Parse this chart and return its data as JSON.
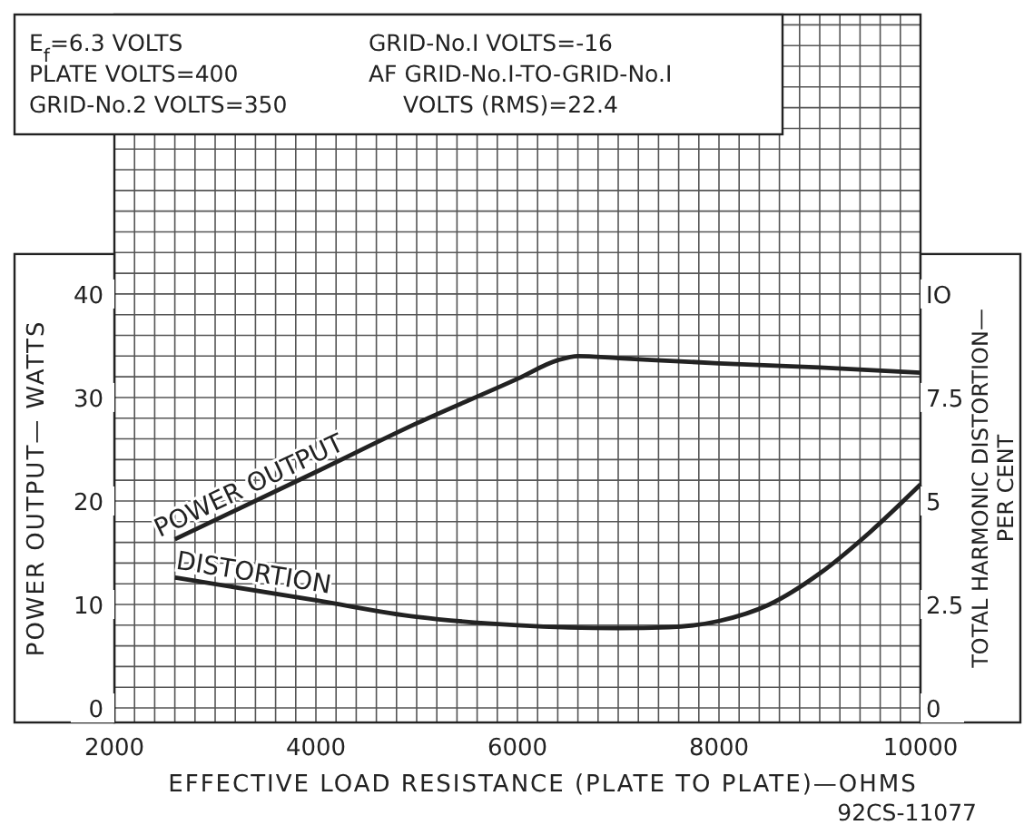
{
  "chart_data": {
    "type": "line",
    "xlabel": "EFFECTIVE LOAD RESISTANCE (PLATE TO PLATE)—OHMS",
    "ylabel": "POWER OUTPUT— WATTS",
    "y2label": "TOTAL HARMONIC DISTORTION— PER CENT",
    "annotations": [
      "E$_{f}$=6.3 VOLTS",
      "PLATE VOLTS=400",
      "GRID-No.2 VOLTS=350",
      "GRID-No.I VOLTS=-16",
      "AF GRID-No.I-TO-GRID-No.I",
      "VOLTS (RMS)=22.4",
      "92CS-11077"
    ],
    "xlim": [
      2000,
      10000
    ],
    "xticks": [
      2000,
      4000,
      6000,
      8000,
      10000
    ],
    "ylim": [
      -1.4,
      67
    ],
    "yticks": [
      0,
      10,
      20,
      30,
      40
    ],
    "y2lim": [
      -0.35,
      16.75
    ],
    "y2ticks": [
      0,
      2.5,
      {
        "value": 5,
        "label": "5"
      },
      7.5,
      {
        "value": 10,
        "label": "IO"
      }
    ],
    "grid": true,
    "marker": "none",
    "line_style": "solid",
    "series": [
      {
        "name": "POWER OUTPUT",
        "color": "#222222",
        "x": [
          2600,
          4000,
          5000,
          6000,
          6400,
          6600,
          7000,
          8000,
          9000,
          10000
        ],
        "values": [
          16.3,
          22.8,
          27.5,
          31.8,
          33.6,
          34,
          33.8,
          33.3,
          32.9,
          32.4
        ]
      },
      {
        "name": "DISTORTION",
        "color": "#222222",
        "axis": "y2",
        "x": [
          2600,
          4000,
          5000,
          6000,
          7000,
          7500,
          8000,
          8500,
          9000,
          9500,
          10000
        ],
        "values": [
          3.15,
          2.6,
          2.2,
          2.0,
          1.93,
          1.95,
          2.1,
          2.5,
          3.25,
          4.25,
          5.4
        ]
      }
    ]
  }
}
